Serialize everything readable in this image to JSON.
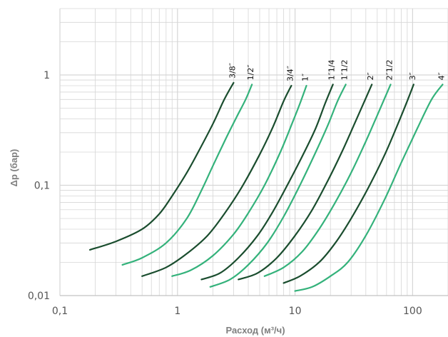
{
  "chart_data": {
    "type": "line",
    "xlabel": "Расход (м³/ч)",
    "ylabel": "Δp (бар)",
    "x_scale": "log",
    "y_scale": "log",
    "xlim": [
      0.1,
      200
    ],
    "ylim": [
      0.01,
      4
    ],
    "grid": true,
    "x_ticks": [
      {
        "value": 0.1,
        "label": "0,1"
      },
      {
        "value": 1,
        "label": "1"
      },
      {
        "value": 10,
        "label": "10"
      },
      {
        "value": 100,
        "label": "100"
      }
    ],
    "y_ticks": [
      {
        "value": 0.01,
        "label": "0,01"
      },
      {
        "value": 0.1,
        "label": "0,1"
      },
      {
        "value": 1,
        "label": "1"
      }
    ],
    "colors": {
      "dark": "#1a4d2e",
      "light": "#34b27b",
      "grid": "#d6d6d6"
    },
    "series": [
      {
        "name": "3/8″",
        "color": "#1a4d2e",
        "points": [
          [
            0.18,
            0.026
          ],
          [
            0.3,
            0.031
          ],
          [
            0.5,
            0.04
          ],
          [
            0.7,
            0.055
          ],
          [
            0.9,
            0.08
          ],
          [
            1.2,
            0.13
          ],
          [
            1.5,
            0.2
          ],
          [
            2.0,
            0.36
          ],
          [
            2.5,
            0.6
          ],
          [
            3.0,
            0.85
          ]
        ]
      },
      {
        "name": "1/2″",
        "color": "#34b27b",
        "points": [
          [
            0.34,
            0.019
          ],
          [
            0.5,
            0.022
          ],
          [
            0.8,
            0.03
          ],
          [
            1.2,
            0.05
          ],
          [
            1.6,
            0.09
          ],
          [
            2.0,
            0.15
          ],
          [
            2.6,
            0.27
          ],
          [
            3.2,
            0.42
          ],
          [
            3.8,
            0.6
          ],
          [
            4.3,
            0.82
          ]
        ]
      },
      {
        "name": "3/4″",
        "color": "#1a4d2e",
        "points": [
          [
            0.5,
            0.015
          ],
          [
            0.8,
            0.018
          ],
          [
            1.2,
            0.024
          ],
          [
            1.8,
            0.035
          ],
          [
            2.5,
            0.055
          ],
          [
            3.5,
            0.095
          ],
          [
            5.0,
            0.19
          ],
          [
            6.5,
            0.34
          ],
          [
            8.0,
            0.58
          ],
          [
            9.3,
            0.8
          ]
        ]
      },
      {
        "name": "1″",
        "color": "#34b27b",
        "points": [
          [
            0.9,
            0.015
          ],
          [
            1.3,
            0.017
          ],
          [
            2.0,
            0.023
          ],
          [
            3.0,
            0.036
          ],
          [
            4.0,
            0.056
          ],
          [
            5.5,
            0.1
          ],
          [
            7.5,
            0.2
          ],
          [
            9.5,
            0.37
          ],
          [
            11.0,
            0.55
          ],
          [
            12.5,
            0.8
          ]
        ]
      },
      {
        "name": "1″1/4",
        "color": "#1a4d2e",
        "points": [
          [
            1.6,
            0.014
          ],
          [
            2.3,
            0.016
          ],
          [
            3.3,
            0.022
          ],
          [
            4.8,
            0.035
          ],
          [
            6.5,
            0.058
          ],
          [
            9.0,
            0.11
          ],
          [
            12.0,
            0.2
          ],
          [
            15.0,
            0.33
          ],
          [
            18.0,
            0.55
          ],
          [
            21.0,
            0.82
          ]
        ]
      },
      {
        "name": "1″1/2",
        "color": "#34b27b",
        "points": [
          [
            1.9,
            0.012
          ],
          [
            2.8,
            0.014
          ],
          [
            4.0,
            0.019
          ],
          [
            5.8,
            0.03
          ],
          [
            8.0,
            0.052
          ],
          [
            11.0,
            0.1
          ],
          [
            15.0,
            0.2
          ],
          [
            19.0,
            0.35
          ],
          [
            23.0,
            0.58
          ],
          [
            27.0,
            0.82
          ]
        ]
      },
      {
        "name": "2″",
        "color": "#1a4d2e",
        "points": [
          [
            3.3,
            0.014
          ],
          [
            4.8,
            0.016
          ],
          [
            7.0,
            0.022
          ],
          [
            10.0,
            0.035
          ],
          [
            14.0,
            0.06
          ],
          [
            19.0,
            0.11
          ],
          [
            25.0,
            0.2
          ],
          [
            32.0,
            0.36
          ],
          [
            39.0,
            0.58
          ],
          [
            45.0,
            0.82
          ]
        ]
      },
      {
        "name": "2″1/2",
        "color": "#34b27b",
        "points": [
          [
            5.5,
            0.015
          ],
          [
            8.0,
            0.018
          ],
          [
            11.5,
            0.025
          ],
          [
            16.0,
            0.04
          ],
          [
            22.0,
            0.07
          ],
          [
            30.0,
            0.13
          ],
          [
            40.0,
            0.25
          ],
          [
            50.0,
            0.43
          ],
          [
            58.0,
            0.62
          ],
          [
            65.0,
            0.82
          ]
        ]
      },
      {
        "name": "3″",
        "color": "#1a4d2e",
        "points": [
          [
            8.0,
            0.013
          ],
          [
            11.0,
            0.015
          ],
          [
            16.0,
            0.02
          ],
          [
            22.0,
            0.03
          ],
          [
            30.0,
            0.05
          ],
          [
            42.0,
            0.095
          ],
          [
            58.0,
            0.19
          ],
          [
            75.0,
            0.36
          ],
          [
            90.0,
            0.58
          ],
          [
            102.0,
            0.82
          ]
        ]
      },
      {
        "name": "4″",
        "color": "#34b27b",
        "points": [
          [
            10.0,
            0.011
          ],
          [
            14.0,
            0.012
          ],
          [
            20.0,
            0.015
          ],
          [
            28.0,
            0.02
          ],
          [
            40.0,
            0.035
          ],
          [
            58.0,
            0.075
          ],
          [
            80.0,
            0.16
          ],
          [
            110.0,
            0.33
          ],
          [
            145.0,
            0.6
          ],
          [
            180.0,
            0.82
          ]
        ]
      }
    ]
  }
}
